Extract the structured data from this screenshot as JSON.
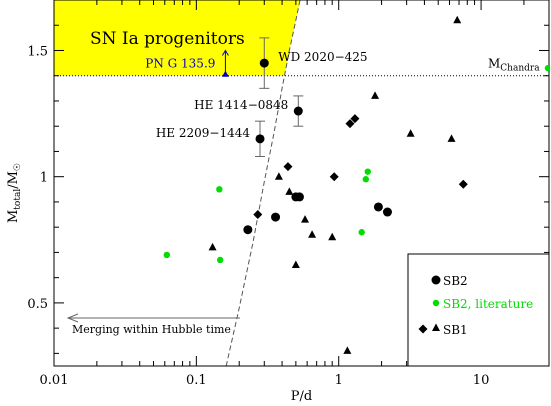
{
  "chart_data": {
    "type": "scatter",
    "x_scale": "log",
    "xlim": [
      0.01,
      30
    ],
    "ylim": [
      0.25,
      1.7
    ],
    "xlabel": "P/d",
    "ylabel_main": "M",
    "ylabel_sub": "total",
    "ylabel_tail": "/M",
    "ylabel_sun": "☉",
    "x_ticks": [
      {
        "value": 0.01,
        "label": "0.01"
      },
      {
        "value": 0.1,
        "label": "0.1"
      },
      {
        "value": 1,
        "label": "1"
      },
      {
        "value": 10,
        "label": "10"
      }
    ],
    "y_ticks": [
      {
        "value": 0.5,
        "label": "0.5"
      },
      {
        "value": 1,
        "label": "1"
      },
      {
        "value": 1.5,
        "label": "1.5"
      }
    ],
    "region_label": "SN Ia progenitors",
    "region_color": "#ffff00",
    "chandra": {
      "value": 1.4,
      "label_main": "M",
      "label_sub": "Chandra"
    },
    "hubble_label": "Merging within Hubble time",
    "hubble_curve": [
      [
        0.162,
        0.25
      ],
      [
        0.2,
        0.48
      ],
      [
        0.25,
        0.74
      ],
      [
        0.3,
        0.98
      ],
      [
        0.35,
        1.17
      ],
      [
        0.4,
        1.35
      ],
      [
        0.45,
        1.5
      ],
      [
        0.5,
        1.62
      ],
      [
        0.535,
        1.7
      ]
    ],
    "png_arrow": {
      "label": "PN G 135.9",
      "x": 0.16,
      "y_from": 1.4,
      "y_to": 1.5,
      "color": "#0000cc"
    },
    "named_objects": [
      {
        "name": "WD 2020−425",
        "x": 0.3,
        "y": 1.45,
        "err": 0.1
      },
      {
        "name": "HE 1414−0848",
        "x": 0.52,
        "y": 1.26,
        "err": 0.06
      },
      {
        "name": "HE 2209−1444",
        "x": 0.28,
        "y": 1.15,
        "err": 0.07
      }
    ],
    "series": [
      {
        "name": "SB2",
        "marker": "circle",
        "color": "#000000",
        "points": [
          [
            0.23,
            0.79
          ],
          [
            0.36,
            0.84
          ],
          [
            0.5,
            0.92
          ],
          [
            0.53,
            0.92
          ],
          [
            1.9,
            0.88
          ],
          [
            2.2,
            0.86
          ]
        ]
      },
      {
        "name": "SB2, literature",
        "marker": "circle",
        "color": "#00dd00",
        "points": [
          [
            0.062,
            0.69
          ],
          [
            0.145,
            0.95
          ],
          [
            0.147,
            0.67
          ],
          [
            1.45,
            0.78
          ],
          [
            1.55,
            0.99
          ],
          [
            1.6,
            1.02
          ],
          [
            29.5,
            1.43
          ]
        ]
      },
      {
        "name": "SB1",
        "marker": "diamond",
        "color": "#000000",
        "points": [
          [
            0.27,
            0.85
          ],
          [
            0.44,
            1.04
          ],
          [
            0.93,
            1.0
          ],
          [
            1.2,
            1.21
          ],
          [
            1.3,
            1.23
          ],
          [
            7.5,
            0.97
          ]
        ]
      },
      {
        "name": "SB1",
        "marker": "triangle",
        "color": "#000000",
        "points": [
          [
            0.13,
            0.72
          ],
          [
            0.38,
            1.0
          ],
          [
            0.45,
            0.94
          ],
          [
            0.5,
            0.65
          ],
          [
            0.58,
            0.83
          ],
          [
            0.65,
            0.77
          ],
          [
            0.9,
            0.76
          ],
          [
            1.15,
            0.31
          ],
          [
            1.8,
            1.32
          ],
          [
            3.2,
            1.17
          ],
          [
            6.2,
            1.15
          ],
          [
            6.8,
            1.62
          ]
        ]
      }
    ],
    "legend": {
      "placement": "bottom-right",
      "entries": [
        {
          "label": "SB2",
          "markers": [
            "circle"
          ],
          "color": "#000000",
          "text_color": "#000000"
        },
        {
          "label": "SB2, literature",
          "markers": [
            "circle"
          ],
          "color": "#00dd00",
          "text_color": "#00dd00"
        },
        {
          "label": "SB1",
          "markers": [
            "diamond",
            "triangle"
          ],
          "color": "#000000",
          "text_color": "#000000"
        }
      ]
    }
  }
}
